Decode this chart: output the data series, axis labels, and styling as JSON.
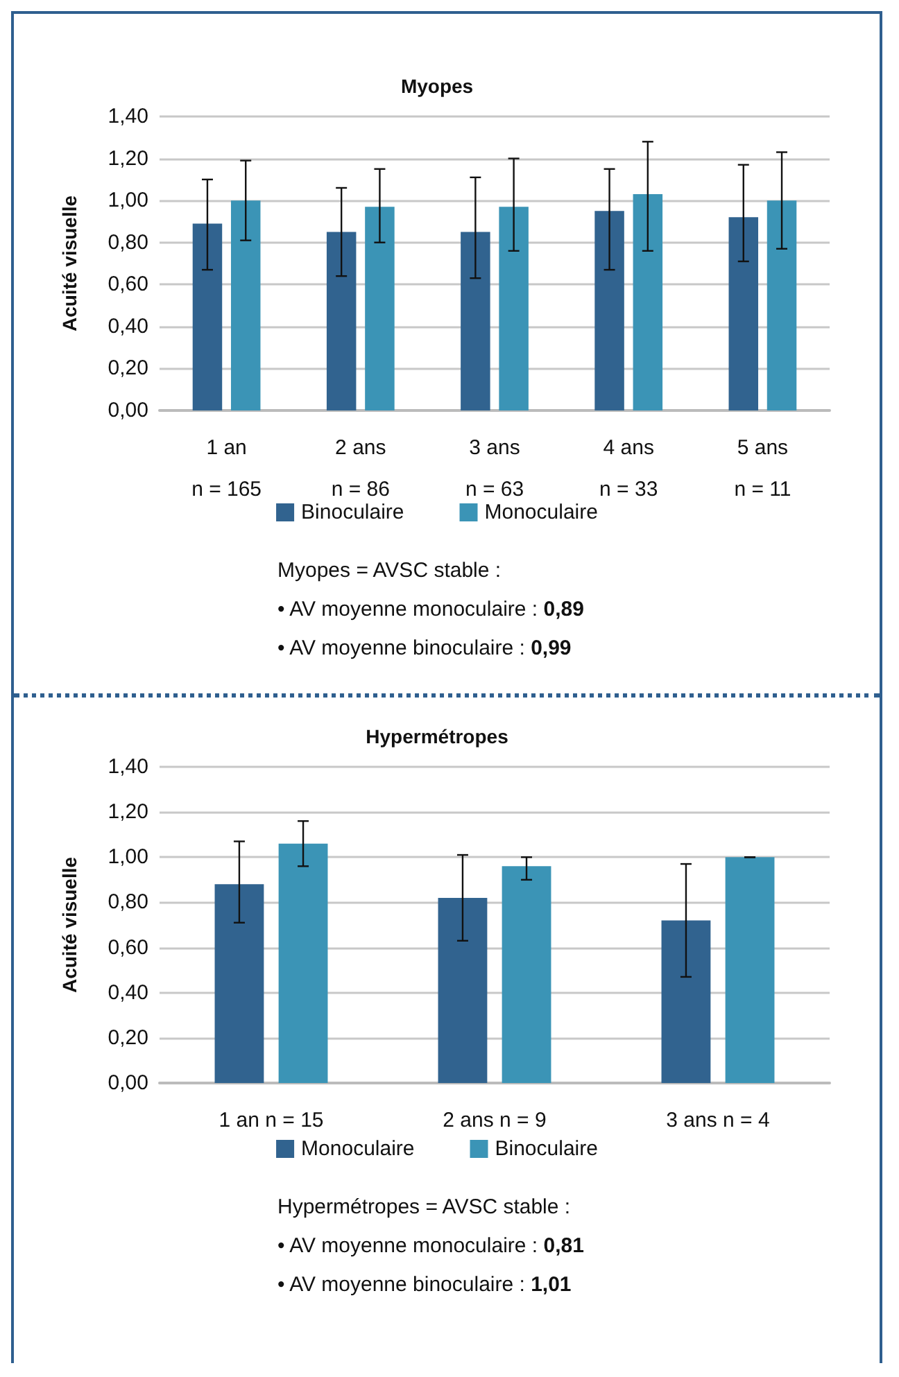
{
  "chart_data": [
    {
      "type": "bar",
      "title": "Myopes",
      "ylabel": "Acuité visuelle",
      "categories": [
        "1 an\nn = 165",
        "2 ans\nn = 86",
        "3 ans\nn = 63",
        "4 ans\nn = 33",
        "5 ans\nn = 11"
      ],
      "series": [
        {
          "name": "Binoculaire",
          "color": "#31638f",
          "values": [
            0.89,
            0.85,
            0.85,
            0.95,
            0.92
          ],
          "errors": [
            [
              0.67,
              1.1
            ],
            [
              0.64,
              1.06
            ],
            [
              0.63,
              1.11
            ],
            [
              0.67,
              1.15
            ],
            [
              0.71,
              1.17
            ]
          ]
        },
        {
          "name": "Monoculaire",
          "color": "#3b94b6",
          "values": [
            1.0,
            0.97,
            0.97,
            1.03,
            1.0
          ],
          "errors": [
            [
              0.81,
              1.19
            ],
            [
              0.8,
              1.15
            ],
            [
              0.76,
              1.2
            ],
            [
              0.76,
              1.28
            ],
            [
              0.77,
              1.23
            ]
          ]
        }
      ],
      "ylim": [
        0,
        1.4
      ],
      "yticks": [
        {
          "value": 0,
          "label": "0,00"
        },
        {
          "value": 0.2,
          "label": "0,20"
        },
        {
          "value": 0.4,
          "label": "0,40"
        },
        {
          "value": 0.6,
          "label": "0,60"
        },
        {
          "value": 0.8,
          "label": "0,80"
        },
        {
          "value": 1.0,
          "label": "1,00"
        },
        {
          "value": 1.2,
          "label": "1,20"
        },
        {
          "value": 1.4,
          "label": "1,40"
        }
      ],
      "grid": "y",
      "legend": "bottom",
      "annotations": [
        "Myopes = AVSC stable :",
        "• AV moyenne monoculaire : 0,89",
        "• AV moyenne binoculaire : 0,99"
      ]
    },
    {
      "type": "bar",
      "title": "Hypermétropes",
      "ylabel": "Acuité visuelle",
      "categories": [
        "1 an n = 15",
        "2 ans n = 9",
        "3 ans n = 4"
      ],
      "series": [
        {
          "name": "Monoculaire",
          "color": "#31638f",
          "values": [
            0.88,
            0.82,
            0.72
          ],
          "errors": [
            [
              0.71,
              1.07
            ],
            [
              0.63,
              1.01
            ],
            [
              0.47,
              0.97
            ]
          ]
        },
        {
          "name": "Binoculaire",
          "color": "#3b94b6",
          "values": [
            1.06,
            0.96,
            1.0
          ],
          "errors": [
            [
              0.96,
              1.16
            ],
            [
              0.9,
              1.0
            ],
            [
              1.0,
              1.0
            ]
          ]
        }
      ],
      "ylim": [
        0,
        1.4
      ],
      "yticks": [
        {
          "value": 0,
          "label": "0,00"
        },
        {
          "value": 0.2,
          "label": "0,20"
        },
        {
          "value": 0.4,
          "label": "0,40"
        },
        {
          "value": 0.6,
          "label": "0,60"
        },
        {
          "value": 0.8,
          "label": "0,80"
        },
        {
          "value": 1.0,
          "label": "1,00"
        },
        {
          "value": 1.2,
          "label": "1,20"
        },
        {
          "value": 1.4,
          "label": "1,40"
        }
      ],
      "grid": "y",
      "legend": "bottom",
      "annotations": [
        "Hypermétropes = AVSC stable :",
        "• AV moyenne monoculaire : 0,81",
        "• AV moyenne binoculaire : 1,01"
      ]
    }
  ]
}
